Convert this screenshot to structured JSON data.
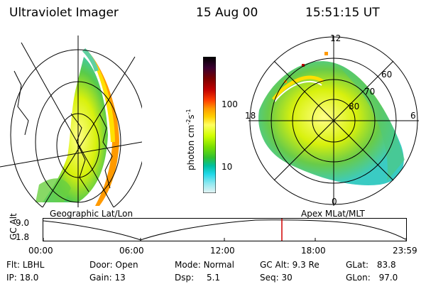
{
  "header": {
    "instrument": "Ultraviolet Imager",
    "date": "15 Aug 00",
    "time": "15:51:15 UT"
  },
  "colorbar": {
    "unit_label": "photon cm",
    "unit_sup1": "-2",
    "unit_mid": "s",
    "unit_sup2": "-1",
    "ticks": [
      "100",
      "10"
    ],
    "colors": [
      "#000000",
      "#3a0030",
      "#7a0000",
      "#c00000",
      "#ff4000",
      "#ff9a00",
      "#ffd000",
      "#ffff60",
      "#d0ff00",
      "#7ae000",
      "#30c030",
      "#00c0a0",
      "#20d8e8",
      "#90e8f0",
      "#e8f4f4"
    ]
  },
  "left_panel": {
    "label": "Geographic Lat/Lon"
  },
  "right_panel": {
    "label": "Apex MLat/MLT",
    "mlt_labels": {
      "top": "12",
      "left": "18",
      "right": "6",
      "bottom": "0"
    },
    "mlat_labels": [
      "60",
      "70",
      "80"
    ]
  },
  "timeline": {
    "ylabel": "GC Alt",
    "yticks": [
      "9.0",
      "1.8"
    ],
    "xticks": [
      "00:00",
      "06:00",
      "12:00",
      "18:00",
      "23:59"
    ],
    "marker_color": "#d00000"
  },
  "info": {
    "flt_label": "Flt:",
    "flt_value": "LBHL",
    "ip_label": "IP:",
    "ip_value": "18.0",
    "door_label": "Door:",
    "door_value": "Open",
    "gain_label": "Gain:",
    "gain_value": "13",
    "mode_label": "Mode:",
    "mode_value": "Normal",
    "dsp_label": "Dsp:",
    "dsp_value": "5.1",
    "gcalt_label": "GC Alt:",
    "gcalt_value": "9.3 Re",
    "seq_label": "Seq:",
    "seq_value": "30",
    "glat_label": "GLat:",
    "glat_value": "83.8",
    "glon_label": "GLon:",
    "glon_value": "97.0"
  }
}
